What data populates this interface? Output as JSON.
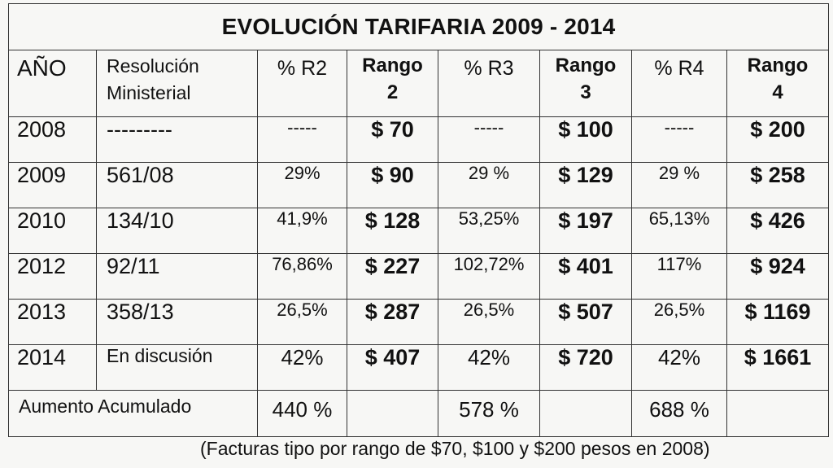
{
  "title": "EVOLUCIÓN TARIFARIA 2009 - 2014",
  "headers": {
    "year": "AÑO",
    "resolution_line1": "Resolución",
    "resolution_line2": "Ministerial",
    "pct_r2": "% R2",
    "rango2_line1": "Rango",
    "rango2_line2": "2",
    "pct_r3": "% R3",
    "rango3_line1": "Rango",
    "rango3_line2": "3",
    "pct_r4": "% R4",
    "rango4_line1": "Rango",
    "rango4_line2": "4"
  },
  "rows": [
    {
      "year": "2008",
      "resolution": "---------",
      "pct_r2": "-----",
      "rango2": "$ 70",
      "pct_r3": "-----",
      "rango3": "$ 100",
      "pct_r4": "-----",
      "rango4": "$ 200"
    },
    {
      "year": "2009",
      "resolution": "561/08",
      "pct_r2": "29%",
      "rango2": "$ 90",
      "pct_r3": "29 %",
      "rango3": "$ 129",
      "pct_r4": "29 %",
      "rango4": "$ 258"
    },
    {
      "year": "2010",
      "resolution": "134/10",
      "pct_r2": "41,9%",
      "rango2": "$ 128",
      "pct_r3": "53,25%",
      "rango3": "$ 197",
      "pct_r4": "65,13%",
      "rango4": "$ 426"
    },
    {
      "year": "2012",
      "resolution": "92/11",
      "pct_r2": "76,86%",
      "rango2": "$ 227",
      "pct_r3": "102,72%",
      "rango3": "$ 401",
      "pct_r4": "117%",
      "rango4": "$ 924"
    },
    {
      "year": "2013",
      "resolution": "358/13",
      "pct_r2": "26,5%",
      "rango2": "$ 287",
      "pct_r3": "26,5%",
      "rango3": "$ 507",
      "pct_r4": "26,5%",
      "rango4": "$ 1169"
    },
    {
      "year": "2014",
      "resolution": "En discusión",
      "pct_r2": "42%",
      "rango2": "$ 407",
      "pct_r3": "42%",
      "rango3": "$ 720",
      "pct_r4": "42%",
      "rango4": "$ 1661"
    }
  ],
  "footer": {
    "label": "Aumento Acumulado",
    "r2": "440 %",
    "r3": "578 %",
    "r4": "688 %"
  },
  "note": "(Facturas tipo por rango de $70, $100 y $200 pesos  en 2008)"
}
